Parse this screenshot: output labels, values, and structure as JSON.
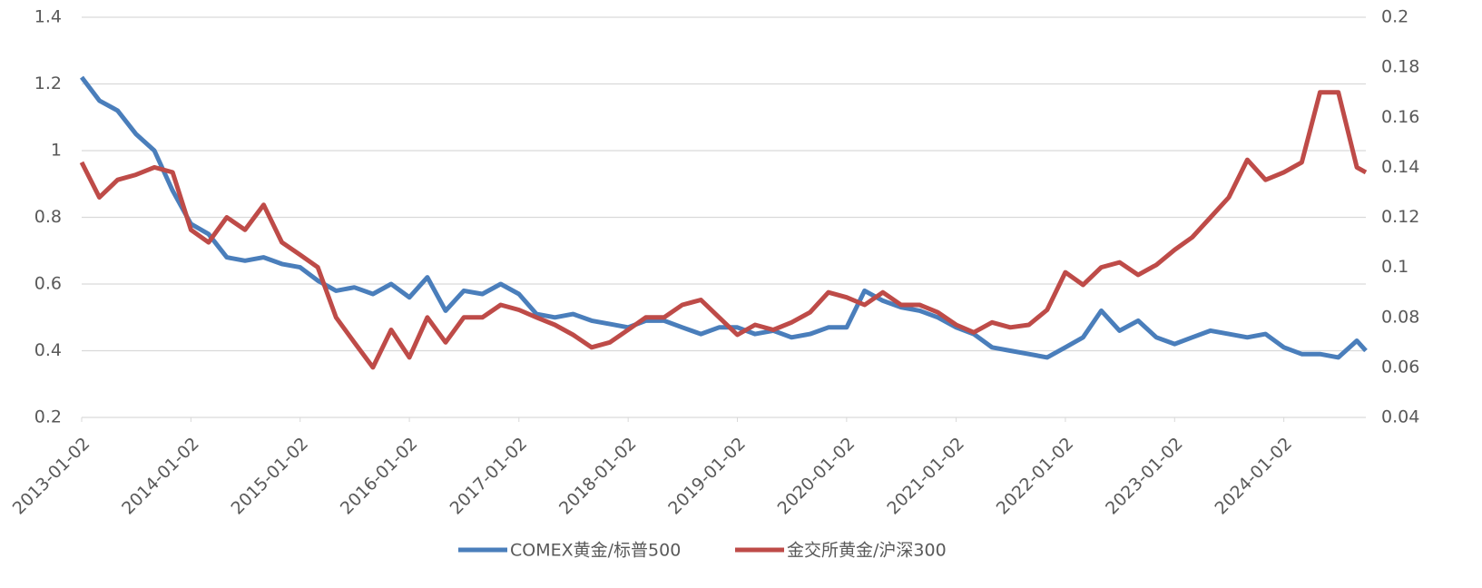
{
  "chart_data": {
    "type": "line",
    "x": [
      "2013-01-02",
      "2013-03-02",
      "2013-05-02",
      "2013-07-02",
      "2013-09-02",
      "2013-11-02",
      "2014-01-02",
      "2014-03-02",
      "2014-05-02",
      "2014-07-02",
      "2014-09-02",
      "2014-11-02",
      "2015-01-02",
      "2015-03-02",
      "2015-05-02",
      "2015-07-02",
      "2015-09-02",
      "2015-11-02",
      "2016-01-02",
      "2016-03-02",
      "2016-05-02",
      "2016-07-02",
      "2016-09-02",
      "2016-11-02",
      "2017-01-02",
      "2017-03-02",
      "2017-05-02",
      "2017-07-02",
      "2017-09-02",
      "2017-11-02",
      "2018-01-02",
      "2018-03-02",
      "2018-05-02",
      "2018-07-02",
      "2018-09-02",
      "2018-11-02",
      "2019-01-02",
      "2019-03-02",
      "2019-05-02",
      "2019-07-02",
      "2019-09-02",
      "2019-11-02",
      "2020-01-02",
      "2020-03-02",
      "2020-05-02",
      "2020-07-02",
      "2020-09-02",
      "2020-11-02",
      "2021-01-02",
      "2021-03-02",
      "2021-05-02",
      "2021-07-02",
      "2021-09-02",
      "2021-11-02",
      "2022-01-02",
      "2022-03-02",
      "2022-05-02",
      "2022-07-02",
      "2022-09-02",
      "2022-11-02",
      "2023-01-02",
      "2023-03-02",
      "2023-05-02",
      "2023-07-02",
      "2023-09-02",
      "2023-11-02",
      "2024-01-02",
      "2024-03-02",
      "2024-05-02",
      "2024-07-02",
      "2024-09-02",
      "2024-10-02"
    ],
    "series": [
      {
        "name": "COMEX黄金/标普500",
        "color": "#4a7ebb",
        "axis": "y",
        "values": [
          1.22,
          1.15,
          1.12,
          1.05,
          1.0,
          0.88,
          0.78,
          0.75,
          0.68,
          0.67,
          0.68,
          0.66,
          0.65,
          0.61,
          0.58,
          0.59,
          0.57,
          0.6,
          0.56,
          0.62,
          0.52,
          0.58,
          0.57,
          0.6,
          0.57,
          0.51,
          0.5,
          0.51,
          0.49,
          0.48,
          0.47,
          0.49,
          0.49,
          0.47,
          0.45,
          0.47,
          0.47,
          0.45,
          0.46,
          0.44,
          0.45,
          0.47,
          0.47,
          0.58,
          0.55,
          0.53,
          0.52,
          0.5,
          0.47,
          0.45,
          0.41,
          0.4,
          0.39,
          0.38,
          0.41,
          0.44,
          0.52,
          0.46,
          0.49,
          0.44,
          0.42,
          0.44,
          0.46,
          0.45,
          0.44,
          0.45,
          0.41,
          0.39,
          0.39,
          0.38,
          0.43,
          0.4
        ]
      },
      {
        "name": "金交所黄金/沪深300",
        "color": "#be4b48",
        "axis": "y2",
        "values": [
          0.142,
          0.128,
          0.135,
          0.137,
          0.14,
          0.138,
          0.115,
          0.11,
          0.12,
          0.115,
          0.125,
          0.11,
          0.105,
          0.1,
          0.08,
          0.07,
          0.06,
          0.075,
          0.064,
          0.08,
          0.07,
          0.08,
          0.08,
          0.085,
          0.083,
          0.08,
          0.077,
          0.073,
          0.068,
          0.07,
          0.075,
          0.08,
          0.08,
          0.085,
          0.087,
          0.08,
          0.073,
          0.077,
          0.075,
          0.078,
          0.082,
          0.09,
          0.088,
          0.085,
          0.09,
          0.085,
          0.085,
          0.082,
          0.077,
          0.074,
          0.078,
          0.076,
          0.077,
          0.083,
          0.098,
          0.093,
          0.1,
          0.102,
          0.097,
          0.101,
          0.107,
          0.112,
          0.12,
          0.128,
          0.143,
          0.135,
          0.138,
          0.142,
          0.17,
          0.17,
          0.14,
          0.138
        ]
      }
    ],
    "xlim": [
      "2013-01-02",
      "2024-10-02"
    ],
    "xticks": [
      "2013-01-02",
      "2014-01-02",
      "2015-01-02",
      "2016-01-02",
      "2017-01-02",
      "2018-01-02",
      "2019-01-02",
      "2020-01-02",
      "2021-01-02",
      "2022-01-02",
      "2023-01-02",
      "2024-01-02"
    ],
    "ylim": [
      0.2,
      1.4
    ],
    "yticks": [
      0.2,
      0.4,
      0.6,
      0.8,
      1,
      1.2,
      1.4
    ],
    "y2lim": [
      0.04,
      0.2
    ],
    "y2ticks": [
      0.04,
      0.06,
      0.08,
      0.1,
      0.12,
      0.14,
      0.16,
      0.18,
      0.2
    ],
    "grid": true,
    "legend": "bottom"
  }
}
